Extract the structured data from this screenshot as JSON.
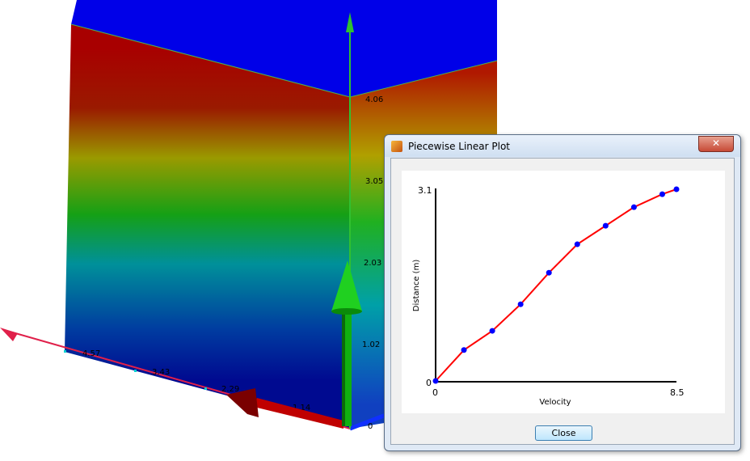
{
  "viewport": {
    "vertical_axis_ticks": [
      "4.06",
      "3.05",
      "2.03",
      "1.02",
      "0"
    ],
    "horizontal_axis_ticks": [
      "4.57",
      "3.43",
      "2.29",
      "1.14"
    ]
  },
  "dialog": {
    "title": "Piecewise Linear Plot",
    "close_x": "✕",
    "close_label": "Close"
  },
  "chart_data": {
    "type": "line",
    "xlabel": "Velocity",
    "ylabel": "Distance (m)",
    "xlim": [
      0,
      8.5
    ],
    "ylim": [
      0,
      3.1
    ],
    "x_tick_labels": [
      "0",
      "8.5"
    ],
    "y_tick_labels": [
      "0",
      "3.1"
    ],
    "x": [
      0,
      1,
      2,
      3,
      4,
      5,
      6,
      7,
      8,
      8.5
    ],
    "y": [
      0,
      0.5,
      0.81,
      1.24,
      1.75,
      2.21,
      2.51,
      2.81,
      3.02,
      3.1
    ],
    "line_color": "#ff0000",
    "marker_color": "#0000ff",
    "grid": false
  }
}
